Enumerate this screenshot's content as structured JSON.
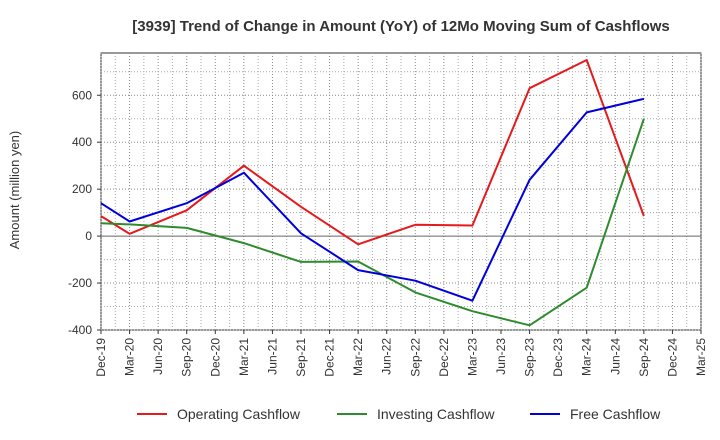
{
  "chart_data": {
    "type": "line",
    "title": "[3939]  Trend of Change in Amount (YoY) of 12Mo Moving Sum of Cashflows",
    "xlabel": "",
    "ylabel": "Amount (million yen)",
    "ylim": [
      -400,
      780
    ],
    "yticks": [
      -400,
      -200,
      0,
      200,
      400,
      600
    ],
    "grid": true,
    "legend_position": "bottom",
    "categories": [
      "Dec-19",
      "Mar-20",
      "Jun-20",
      "Sep-20",
      "Dec-20",
      "Mar-21",
      "Jun-21",
      "Sep-21",
      "Dec-21",
      "Mar-22",
      "Jun-22",
      "Sep-22",
      "Dec-22",
      "Mar-23",
      "Jun-23",
      "Sep-23",
      "Dec-23",
      "Mar-24",
      "Jun-24",
      "Sep-24",
      "Dec-24",
      "Mar-25"
    ],
    "series": [
      {
        "name": "Operating Cashflow",
        "color": "#e41a1c",
        "values": [
          85,
          10,
          null,
          110,
          null,
          300,
          null,
          125,
          null,
          -35,
          null,
          48,
          null,
          45,
          null,
          630,
          null,
          750,
          null,
          85,
          null,
          null
        ]
      },
      {
        "name": "Investing Cashflow",
        "color": "#2e8b2e",
        "values": [
          55,
          50,
          null,
          35,
          null,
          -30,
          null,
          -110,
          null,
          -108,
          null,
          -240,
          null,
          -320,
          null,
          -380,
          null,
          -220,
          null,
          500,
          null,
          null
        ]
      },
      {
        "name": "Free Cashflow",
        "color": "#0000dd",
        "values": [
          140,
          62,
          null,
          140,
          null,
          270,
          null,
          12,
          null,
          -145,
          null,
          -190,
          null,
          -275,
          null,
          240,
          null,
          527,
          null,
          585,
          null,
          null
        ]
      }
    ]
  }
}
